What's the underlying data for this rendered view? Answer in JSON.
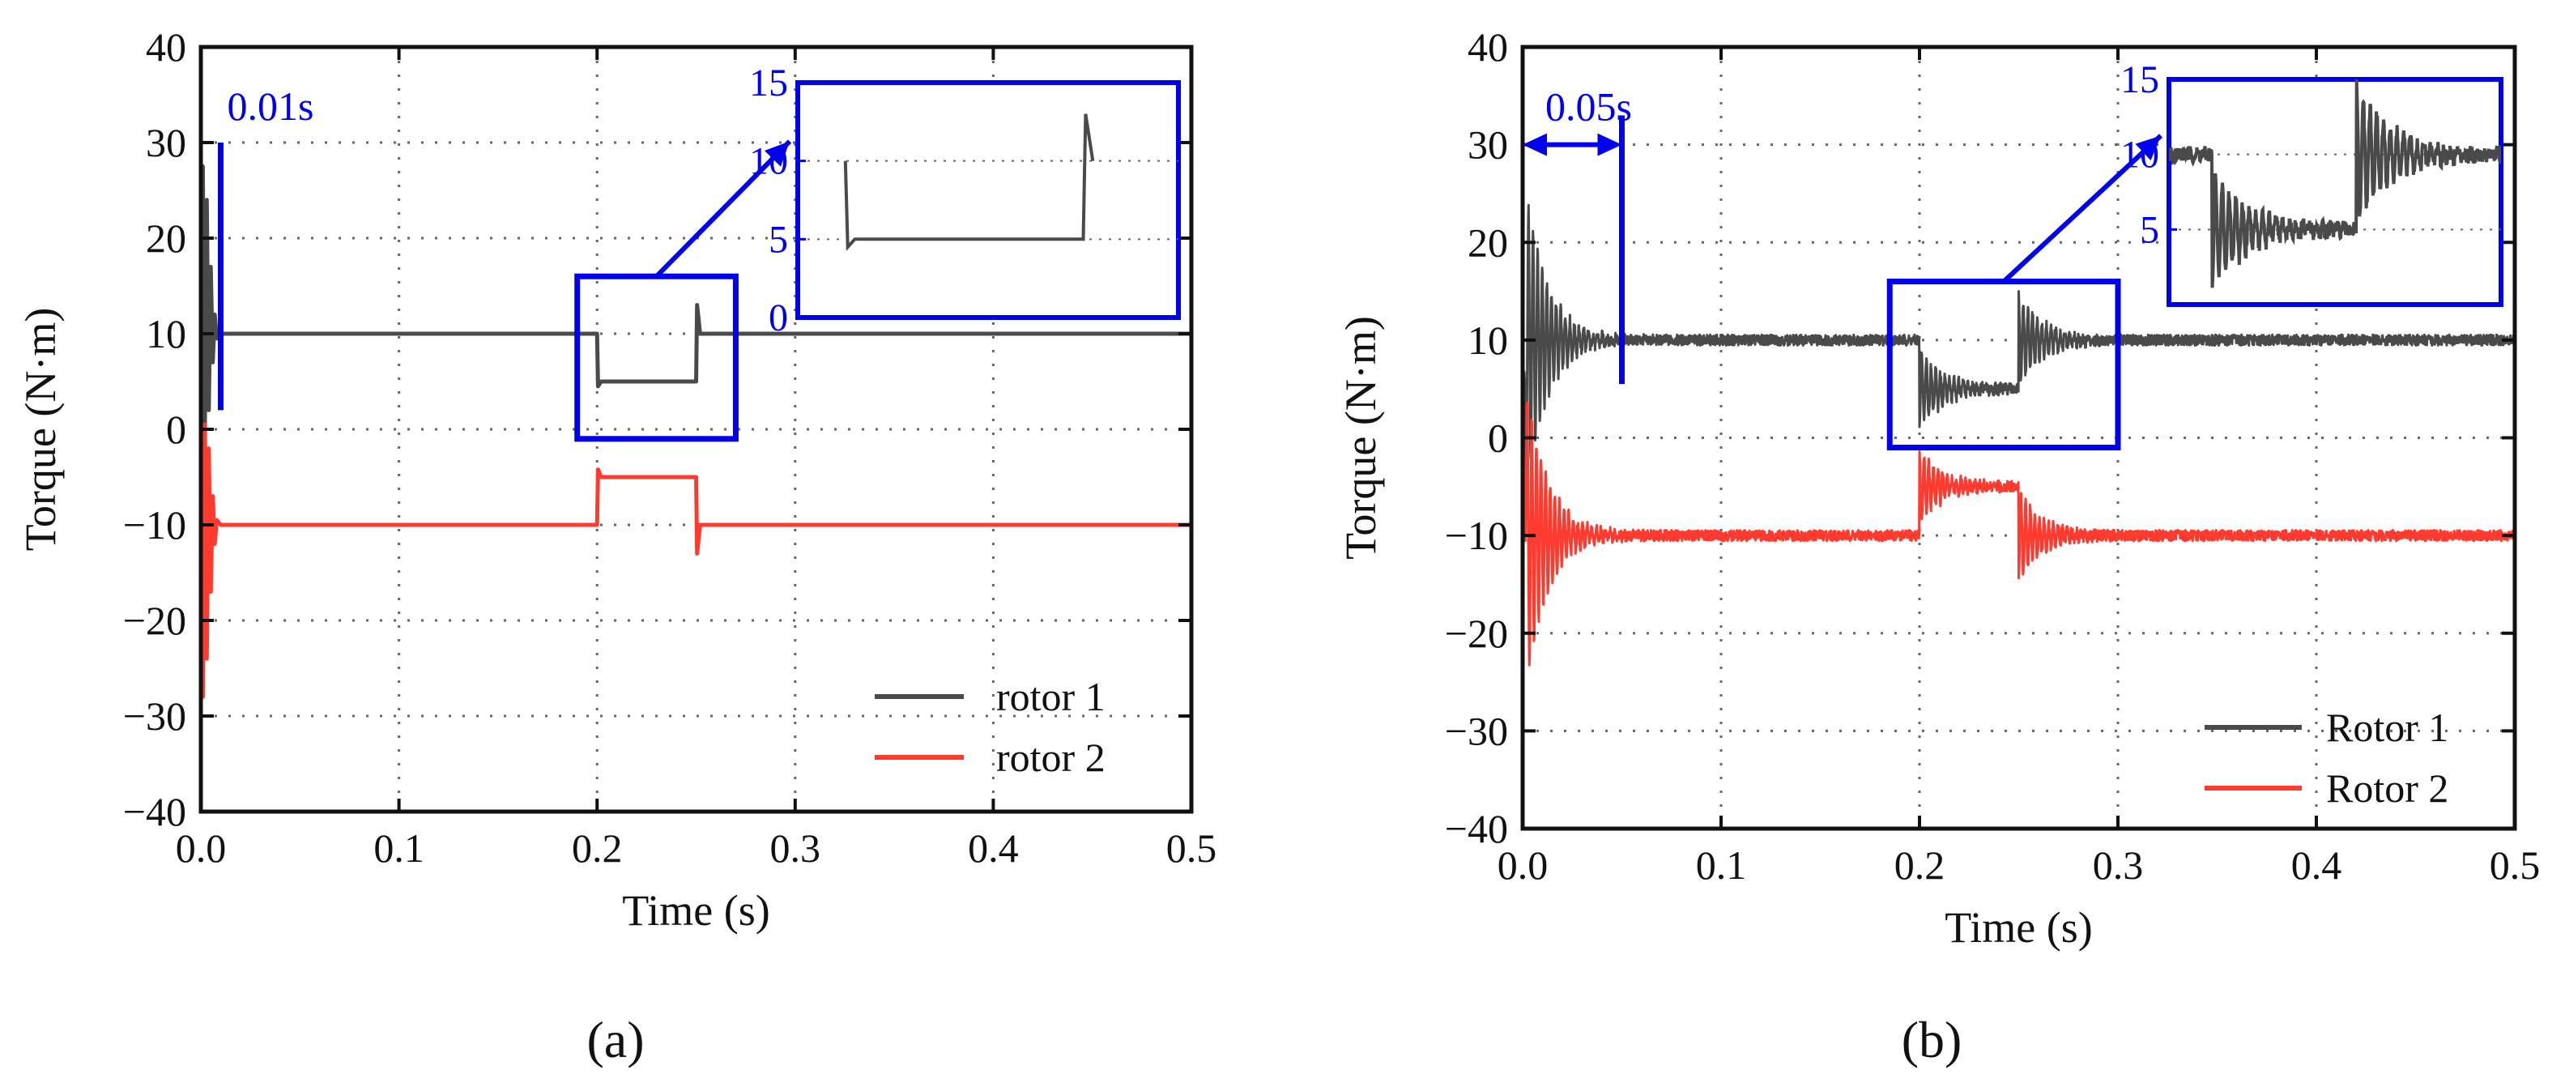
{
  "colors": {
    "rotor1": "#4a4a4a",
    "rotor2": "#ff3b30",
    "annotation": "#0000ee",
    "grid": "#666666"
  },
  "chart_data": [
    {
      "type": "line",
      "panel_label": "(a)",
      "xlabel": "Time (s)",
      "ylabel": "Torque (N·m)",
      "xlim": [
        0,
        0.5
      ],
      "ylim": [
        -40,
        40
      ],
      "xticks": [
        "0.0",
        "0.1",
        "0.2",
        "0.3",
        "0.4",
        "0.5"
      ],
      "yticks": [
        "40",
        "30",
        "20",
        "10",
        "0",
        "−10",
        "−20",
        "−30",
        "−40"
      ],
      "grid": true,
      "legend_position": "bottom-right",
      "annotation": {
        "label": "0.01s",
        "time": 0.01
      },
      "zoom_window": {
        "t": [
          0.19,
          0.27
        ],
        "y": [
          -1,
          16
        ]
      },
      "inset": {
        "xlim": [
          0.19,
          0.27
        ],
        "ylim": [
          0,
          15
        ],
        "yticks": [
          "15",
          "10",
          "5",
          "0"
        ]
      },
      "series": [
        {
          "name": "rotor 1",
          "color": "#4a4a4a",
          "points": [
            [
              0,
              0
            ],
            [
              0.001,
              27.5
            ],
            [
              0.002,
              -0.5
            ],
            [
              0.003,
              24
            ],
            [
              0.004,
              2
            ],
            [
              0.005,
              17
            ],
            [
              0.006,
              7
            ],
            [
              0.007,
              12
            ],
            [
              0.008,
              9.5
            ],
            [
              0.01,
              10
            ],
            [
              0.2,
              10
            ],
            [
              0.2005,
              4.5
            ],
            [
              0.202,
              5
            ],
            [
              0.25,
              5
            ],
            [
              0.2505,
              13
            ],
            [
              0.252,
              10
            ],
            [
              0.5,
              10
            ]
          ]
        },
        {
          "name": "rotor 2",
          "color": "#ff3b30",
          "points": [
            [
              0,
              0
            ],
            [
              0.001,
              -28
            ],
            [
              0.002,
              0.5
            ],
            [
              0.003,
              -24
            ],
            [
              0.004,
              -2
            ],
            [
              0.005,
              -17
            ],
            [
              0.006,
              -7
            ],
            [
              0.007,
              -12
            ],
            [
              0.008,
              -9.5
            ],
            [
              0.01,
              -10
            ],
            [
              0.2,
              -10
            ],
            [
              0.2005,
              -4.2
            ],
            [
              0.202,
              -5
            ],
            [
              0.25,
              -5
            ],
            [
              0.2505,
              -13
            ],
            [
              0.252,
              -10
            ],
            [
              0.5,
              -10
            ]
          ]
        }
      ]
    },
    {
      "type": "line",
      "panel_label": "(b)",
      "xlabel": "Time (s)",
      "ylabel": "Torque (N·m)",
      "xlim": [
        0,
        0.5
      ],
      "ylim": [
        -40,
        40
      ],
      "xticks": [
        "0.0",
        "0.1",
        "0.2",
        "0.3",
        "0.4",
        "0.5"
      ],
      "yticks": [
        "40",
        "30",
        "20",
        "10",
        "0",
        "−10",
        "−20",
        "−30",
        "−40"
      ],
      "grid": true,
      "legend_position": "bottom-right",
      "annotation": {
        "label": "0.05s",
        "time": 0.05
      },
      "zoom_window": {
        "t": [
          0.185,
          0.3
        ],
        "y": [
          -1,
          16
        ]
      },
      "inset": {
        "xlim": [
          0.185,
          0.3
        ],
        "ylim": [
          0,
          15
        ],
        "yticks": [
          "15",
          "10",
          "5"
        ]
      },
      "series": [
        {
          "name": "Rotor 1",
          "color": "#4a4a4a",
          "model": {
            "base": 10,
            "init_amp": 18,
            "decay": 0.011,
            "freq": 430,
            "noise": 0.55,
            "steps": [
              {
                "t": 0.2,
                "to": 5,
                "amp": 4,
                "decay": 0.012
              },
              {
                "t": 0.25,
                "to": 10,
                "amp": 4.5,
                "decay": 0.012
              }
            ]
          }
        },
        {
          "name": "Rotor 2",
          "color": "#ff3b30",
          "model": {
            "base": -10,
            "init_amp": 18,
            "decay": 0.011,
            "freq": 430,
            "noise": 0.55,
            "steps": [
              {
                "t": 0.2,
                "to": -5,
                "amp": 3.5,
                "decay": 0.012
              },
              {
                "t": 0.25,
                "to": -10,
                "amp": 4.5,
                "decay": 0.012
              }
            ]
          }
        }
      ]
    }
  ]
}
